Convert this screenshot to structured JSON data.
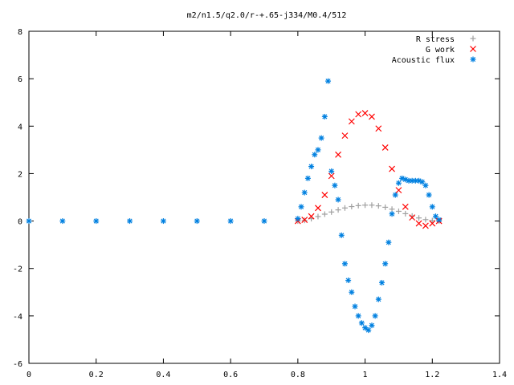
{
  "chart_data": {
    "type": "scatter",
    "title": "m2/n1.5/q2.0/r-+.65-j334/M0.4/512",
    "xlabel": "",
    "ylabel": "",
    "xlim": [
      0,
      1.4
    ],
    "ylim": [
      -6,
      8
    ],
    "x_ticks": [
      "0",
      "0.2",
      "0.4",
      "0.6",
      "0.8",
      "1",
      "1.2",
      "1.4"
    ],
    "y_ticks": [
      "8",
      "6",
      "4",
      "2",
      "0",
      "-2",
      "-4",
      "-6"
    ],
    "grid": false,
    "legend_position": "top-right",
    "series": [
      {
        "name": "R stress",
        "marker": "+",
        "color": "#a0a0a0",
        "x": [
          0.8,
          0.82,
          0.84,
          0.86,
          0.88,
          0.9,
          0.92,
          0.94,
          0.96,
          0.98,
          1.0,
          1.02,
          1.04,
          1.06,
          1.08,
          1.1,
          1.12,
          1.14,
          1.16,
          1.18,
          1.2,
          1.22
        ],
        "y": [
          0.0,
          0.03,
          0.1,
          0.19,
          0.29,
          0.38,
          0.47,
          0.55,
          0.61,
          0.65,
          0.67,
          0.67,
          0.64,
          0.58,
          0.5,
          0.41,
          0.31,
          0.21,
          0.13,
          0.06,
          0.02,
          0.0
        ]
      },
      {
        "name": "G work",
        "marker": "x",
        "color": "#ff0000",
        "x": [
          0.8,
          0.82,
          0.84,
          0.86,
          0.88,
          0.9,
          0.92,
          0.94,
          0.96,
          0.98,
          1.0,
          1.02,
          1.04,
          1.06,
          1.08,
          1.1,
          1.12,
          1.14,
          1.16,
          1.18,
          1.2,
          1.22
        ],
        "y": [
          0.0,
          0.05,
          0.2,
          0.55,
          1.1,
          1.9,
          2.8,
          3.6,
          4.2,
          4.5,
          4.55,
          4.4,
          3.9,
          3.1,
          2.2,
          1.3,
          0.6,
          0.15,
          -0.1,
          -0.2,
          -0.1,
          0.0
        ]
      },
      {
        "name": "Acoustic flux",
        "marker": "*",
        "color": "#0080e0",
        "x": [
          0.0,
          0.1,
          0.2,
          0.3,
          0.4,
          0.5,
          0.6,
          0.7,
          0.8,
          0.81,
          0.82,
          0.83,
          0.84,
          0.85,
          0.86,
          0.87,
          0.88,
          0.89,
          0.9,
          0.91,
          0.92,
          0.93,
          0.94,
          0.95,
          0.96,
          0.97,
          0.98,
          0.99,
          1.0,
          1.01,
          1.02,
          1.03,
          1.04,
          1.05,
          1.06,
          1.07,
          1.08,
          1.09,
          1.1,
          1.11,
          1.12,
          1.13,
          1.14,
          1.15,
          1.16,
          1.17,
          1.18,
          1.19,
          1.2,
          1.21,
          1.22
        ],
        "y": [
          0.0,
          0.0,
          0.0,
          0.0,
          0.0,
          0.0,
          0.0,
          0.0,
          0.1,
          0.6,
          1.2,
          1.8,
          2.3,
          2.8,
          3.0,
          3.5,
          4.4,
          5.9,
          2.1,
          1.5,
          0.9,
          -0.6,
          -1.8,
          -2.5,
          -3.0,
          -3.6,
          -4.0,
          -4.3,
          -4.5,
          -4.6,
          -4.4,
          -4.0,
          -3.3,
          -2.6,
          -1.8,
          -0.9,
          0.3,
          1.1,
          1.6,
          1.8,
          1.75,
          1.7,
          1.7,
          1.7,
          1.7,
          1.65,
          1.5,
          1.1,
          0.6,
          0.2,
          0.05
        ]
      }
    ]
  }
}
